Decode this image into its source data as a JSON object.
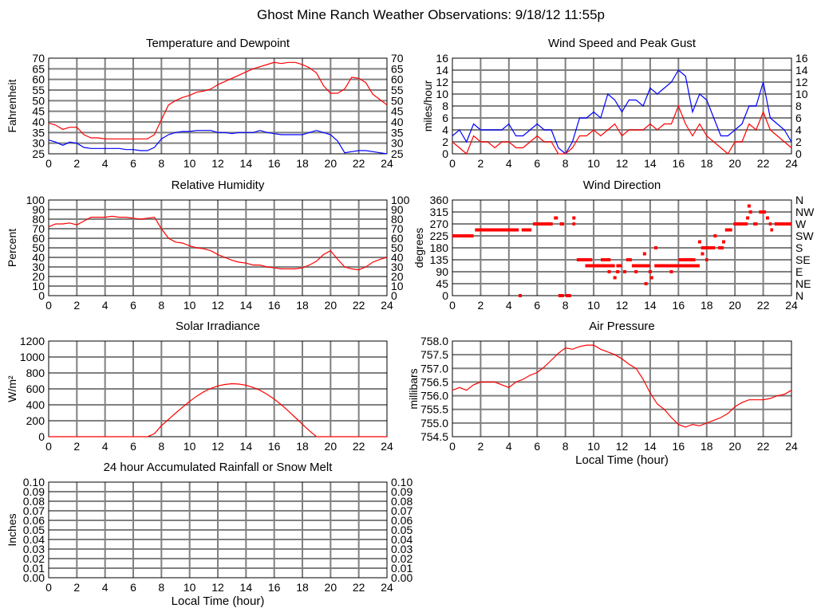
{
  "title": "Ghost Mine Ranch Weather Observations: 9/18/12 11:55p",
  "chart_data": [
    {
      "id": "temp",
      "type": "line",
      "title": "Temperature and Dewpoint",
      "xlabel": "",
      "ylabel": "Fahrenheit",
      "xlim": [
        0,
        24
      ],
      "ylim": [
        25,
        70
      ],
      "xticks": [
        "0",
        "2",
        "4",
        "6",
        "8",
        "10",
        "12",
        "14",
        "16",
        "18",
        "20",
        "22",
        "24"
      ],
      "yticks": [
        "25",
        "30",
        "35",
        "40",
        "45",
        "50",
        "55",
        "60",
        "65",
        "70"
      ],
      "right_yticks": [
        "25",
        "30",
        "35",
        "40",
        "45",
        "50",
        "55",
        "60",
        "65",
        "70"
      ],
      "grid": true,
      "x_step": 0.5,
      "series": [
        {
          "color": "#ff0000",
          "values": [
            39.5,
            38.5,
            36.5,
            37.5,
            37.5,
            34,
            32.5,
            32.5,
            32,
            32,
            32,
            32,
            32,
            32,
            32,
            34,
            41,
            48,
            50,
            51.5,
            52.5,
            54,
            54.5,
            55.5,
            57.5,
            59,
            60.5,
            62,
            63.5,
            65,
            66,
            67,
            68,
            67.5,
            68,
            68,
            67,
            65.5,
            63,
            57,
            53.5,
            53.5,
            55.5,
            61,
            60.5,
            58.5,
            53,
            50.5,
            48
          ]
        },
        {
          "color": "#0000ff",
          "values": [
            31.5,
            30.5,
            29,
            30.5,
            30,
            28,
            27.5,
            27.5,
            27.5,
            27.5,
            27.5,
            27,
            27,
            26.5,
            26.5,
            28,
            32,
            34,
            35,
            35.5,
            35.5,
            36,
            36,
            36,
            35,
            35,
            34.5,
            35,
            35,
            35,
            36,
            35,
            34.5,
            34,
            34,
            34,
            34,
            35,
            36,
            35,
            34,
            31,
            25.5,
            26,
            26.5,
            26.5,
            26,
            25.5,
            25
          ]
        }
      ]
    },
    {
      "id": "wind",
      "type": "line",
      "title": "Wind Speed and Peak Gust",
      "xlabel": "",
      "ylabel": "miles/hour",
      "xlim": [
        0,
        24
      ],
      "ylim": [
        0,
        16
      ],
      "xticks": [
        "0",
        "2",
        "4",
        "6",
        "8",
        "10",
        "12",
        "14",
        "16",
        "18",
        "20",
        "22",
        "24"
      ],
      "yticks": [
        "0",
        "2",
        "4",
        "6",
        "8",
        "10",
        "12",
        "14",
        "16"
      ],
      "right_yticks": [
        "0",
        "2",
        "4",
        "6",
        "8",
        "10",
        "12",
        "14",
        "16"
      ],
      "grid": true,
      "x_step": 0.5,
      "series": [
        {
          "color": "#0000ff",
          "values": [
            3,
            4,
            2,
            5,
            4,
            4,
            4,
            4,
            5,
            3,
            3,
            4,
            5,
            4,
            4,
            1,
            0,
            2,
            6,
            6,
            7,
            6,
            10,
            9,
            7,
            9,
            9,
            8,
            11,
            10,
            11,
            12,
            14,
            13,
            7,
            10,
            9,
            6,
            3,
            3,
            4,
            5,
            8,
            8,
            12,
            6,
            5,
            4,
            2
          ]
        },
        {
          "color": "#ff0000",
          "values": [
            2,
            1,
            0,
            3,
            2,
            2,
            1,
            2,
            2,
            1,
            1,
            2,
            3,
            2,
            2,
            0,
            0,
            1,
            3,
            3,
            4,
            3,
            4,
            5,
            3,
            4,
            4,
            4,
            5,
            4,
            5,
            5,
            8,
            5,
            3,
            5,
            3,
            2,
            1,
            0,
            2,
            2,
            5,
            4,
            7,
            4,
            3,
            2,
            1
          ]
        }
      ]
    },
    {
      "id": "rh",
      "type": "line",
      "title": "Relative Humidity",
      "xlabel": "",
      "ylabel": "Percent",
      "xlim": [
        0,
        24
      ],
      "ylim": [
        0,
        100
      ],
      "xticks": [
        "0",
        "2",
        "4",
        "6",
        "8",
        "10",
        "12",
        "14",
        "16",
        "18",
        "20",
        "22",
        "24"
      ],
      "yticks": [
        "0",
        "10",
        "20",
        "30",
        "40",
        "50",
        "60",
        "70",
        "80",
        "90",
        "100"
      ],
      "right_yticks": [
        "0",
        "10",
        "20",
        "30",
        "40",
        "50",
        "60",
        "70",
        "80",
        "90",
        "100"
      ],
      "grid": true,
      "x_step": 0.5,
      "series": [
        {
          "color": "#ff0000",
          "values": [
            72,
            75,
            75,
            76,
            74,
            78,
            82,
            82,
            82,
            83,
            82,
            82,
            81,
            80,
            81,
            82,
            70,
            60,
            56,
            55,
            52,
            50,
            49,
            47,
            43,
            40,
            37,
            35,
            34,
            32,
            32,
            30,
            29,
            28,
            28,
            28,
            29,
            32,
            36,
            43,
            47,
            38,
            30,
            28,
            27,
            30,
            35,
            38,
            40
          ]
        }
      ]
    },
    {
      "id": "winddir",
      "type": "scatter",
      "title": "Wind Direction",
      "xlabel": "",
      "ylabel": "degrees",
      "xlim": [
        0,
        24
      ],
      "ylim": [
        0,
        360
      ],
      "xticks": [
        "0",
        "2",
        "4",
        "6",
        "8",
        "10",
        "12",
        "14",
        "16",
        "18",
        "20",
        "22",
        "24"
      ],
      "yticks": [
        "0",
        "45",
        "90",
        "135",
        "180",
        "225",
        "270",
        "315",
        "360"
      ],
      "right_yticks": [
        "N",
        "NE",
        "E",
        "SE",
        "S",
        "SW",
        "W",
        "NW",
        "N"
      ],
      "grid": true,
      "color": "#ff0000",
      "runs": [
        [
          0,
          1.5,
          225
        ],
        [
          1.6,
          4.7,
          247.5
        ],
        [
          4.9,
          5.6,
          247.5
        ],
        [
          5.7,
          7.1,
          270
        ],
        [
          7.3,
          7.4,
          292.5
        ],
        [
          7.5,
          7.9,
          0
        ],
        [
          7.6,
          7.9,
          270
        ],
        [
          8.0,
          8.4,
          0
        ],
        [
          8.5,
          8.7,
          270
        ],
        [
          8.8,
          9.9,
          135
        ],
        [
          9.4,
          11.5,
          112.5
        ],
        [
          10.5,
          11.2,
          135
        ],
        [
          11.6,
          12.0,
          112.5
        ],
        [
          12.3,
          12.7,
          135
        ],
        [
          12.7,
          14.0,
          112.5
        ],
        [
          14.3,
          17.5,
          112.5
        ],
        [
          16.0,
          17.2,
          135
        ],
        [
          17.6,
          18.6,
          180
        ],
        [
          17.9,
          18.1,
          135
        ],
        [
          18.8,
          19.2,
          180
        ],
        [
          19.3,
          19.8,
          247.5
        ],
        [
          19.9,
          20.9,
          270
        ],
        [
          21.3,
          21.6,
          270
        ],
        [
          21.7,
          22.2,
          315
        ],
        [
          22.4,
          22.6,
          270
        ],
        [
          22.5,
          22.7,
          247.5
        ],
        [
          22.8,
          24,
          270
        ]
      ],
      "points": [
        [
          4.8,
          0
        ],
        [
          7.3,
          292.5
        ],
        [
          8.6,
          292.5
        ],
        [
          11.1,
          90
        ],
        [
          11.5,
          67.5
        ],
        [
          11.7,
          90
        ],
        [
          12.2,
          90
        ],
        [
          13.0,
          90
        ],
        [
          13.6,
          157.5
        ],
        [
          13.7,
          45
        ],
        [
          14.0,
          90
        ],
        [
          14.1,
          67.5
        ],
        [
          14.4,
          180
        ],
        [
          15.5,
          90
        ],
        [
          17.5,
          202.5
        ],
        [
          17.7,
          157.5
        ],
        [
          18.6,
          225
        ],
        [
          19.2,
          202.5
        ],
        [
          21.0,
          337.5
        ],
        [
          20.9,
          292.5
        ],
        [
          21.1,
          315
        ],
        [
          22.3,
          292.5
        ]
      ]
    },
    {
      "id": "solar",
      "type": "line",
      "title": "Solar Irradiance",
      "xlabel": "",
      "ylabel": "W/m²",
      "xlim": [
        0,
        24
      ],
      "ylim": [
        0,
        1300
      ],
      "xticks": [
        "0",
        "2",
        "4",
        "6",
        "8",
        "10",
        "12",
        "14",
        "16",
        "18",
        "20",
        "22",
        "24"
      ],
      "yticks": [
        "0",
        "200",
        "400",
        "600",
        "800",
        "1000",
        "1200"
      ],
      "grid": true,
      "x_step": 0.5,
      "series": [
        {
          "color": "#ff0000",
          "values": [
            0,
            0,
            0,
            0,
            0,
            0,
            0,
            0,
            0,
            0,
            0,
            0,
            0,
            0,
            0,
            40,
            150,
            235,
            320,
            400,
            480,
            550,
            610,
            655,
            690,
            710,
            720,
            715,
            700,
            670,
            630,
            575,
            510,
            435,
            350,
            260,
            170,
            80,
            0,
            0,
            0,
            0,
            0,
            0,
            0,
            0,
            0,
            0,
            0
          ]
        }
      ]
    },
    {
      "id": "pressure",
      "type": "line",
      "title": "Air Pressure",
      "xlabel": "Local Time (hour)",
      "ylabel": "millibars",
      "xlim": [
        0,
        24
      ],
      "ylim": [
        754.5,
        758.0
      ],
      "xticks": [
        "0",
        "2",
        "4",
        "6",
        "8",
        "10",
        "12",
        "14",
        "16",
        "18",
        "20",
        "22",
        "24"
      ],
      "yticks": [
        "754.5",
        "755.0",
        "755.5",
        "756.0",
        "756.5",
        "757.0",
        "757.5",
        "758.0"
      ],
      "grid": true,
      "x_step": 0.5,
      "series": [
        {
          "color": "#ff0000",
          "values": [
            756.2,
            756.3,
            756.2,
            756.4,
            756.5,
            756.5,
            756.5,
            756.4,
            756.3,
            756.5,
            756.6,
            756.75,
            756.85,
            757.05,
            757.3,
            757.55,
            757.75,
            757.7,
            757.8,
            757.85,
            757.85,
            757.7,
            757.6,
            757.5,
            757.35,
            757.15,
            757.0,
            756.6,
            756.1,
            755.7,
            755.5,
            755.2,
            754.95,
            754.85,
            754.95,
            754.9,
            755.0,
            755.1,
            755.2,
            755.35,
            755.6,
            755.75,
            755.85,
            755.85,
            755.85,
            755.9,
            756.0,
            756.05,
            756.2
          ]
        }
      ]
    },
    {
      "id": "rain",
      "type": "line",
      "title": "24 hour Accumulated Rainfall or Snow Melt",
      "xlabel": "Local Time (hour)",
      "ylabel": "Inches",
      "xlim": [
        0,
        24
      ],
      "ylim": [
        0,
        0.1
      ],
      "xticks": [
        "0",
        "2",
        "4",
        "6",
        "8",
        "10",
        "12",
        "14",
        "16",
        "18",
        "20",
        "22",
        "24"
      ],
      "yticks": [
        "0.00",
        "0.01",
        "0.02",
        "0.03",
        "0.04",
        "0.05",
        "0.06",
        "0.07",
        "0.08",
        "0.09",
        "0.10"
      ],
      "right_yticks": [
        "0.00",
        "0.01",
        "0.02",
        "0.03",
        "0.04",
        "0.05",
        "0.06",
        "0.07",
        "0.08",
        "0.09",
        "0.10"
      ],
      "grid": true,
      "series": []
    }
  ]
}
